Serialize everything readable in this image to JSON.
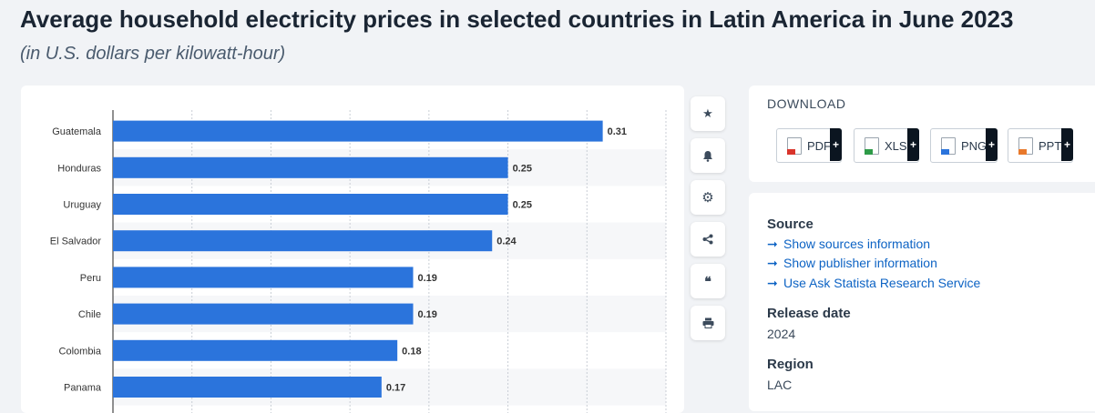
{
  "header": {
    "title": "Average household electricity prices in selected countries in Latin America in June 2023",
    "subtitle": "(in U.S. dollars per kilowatt-hour)"
  },
  "chart_data": {
    "type": "bar",
    "orientation": "horizontal",
    "categories": [
      "Guatemala",
      "Honduras",
      "Uruguay",
      "El Salvador",
      "Peru",
      "Chile",
      "Colombia",
      "Panama"
    ],
    "values": [
      0.31,
      0.25,
      0.25,
      0.24,
      0.19,
      0.19,
      0.18,
      0.17
    ],
    "value_labels": [
      "0.31",
      "0.25",
      "0.25",
      "0.24",
      "0.19",
      "0.19",
      "0.18",
      "0.17"
    ],
    "xlim": [
      0,
      0.35
    ],
    "bar_color": "#2b74dc",
    "grid": true,
    "title": "",
    "xlabel": "",
    "ylabel": ""
  },
  "toolbar": {
    "buttons": [
      {
        "name": "favorite",
        "icon": "star-icon",
        "glyph": "★"
      },
      {
        "name": "notification",
        "icon": "bell-icon",
        "glyph": "🔔"
      },
      {
        "name": "settings",
        "icon": "gear-icon",
        "glyph": "⚙"
      },
      {
        "name": "share",
        "icon": "share-icon",
        "glyph": "<"
      },
      {
        "name": "cite",
        "icon": "quote-icon",
        "glyph": "❝"
      },
      {
        "name": "print",
        "icon": "print-icon",
        "glyph": "⎙"
      }
    ]
  },
  "download": {
    "heading": "DOWNLOAD",
    "buttons": [
      {
        "label": "PDF",
        "icon": "pdf-icon",
        "color": "#d9342b"
      },
      {
        "label": "XLS",
        "icon": "xls-icon",
        "color": "#2e9b48"
      },
      {
        "label": "PNG",
        "icon": "png-icon",
        "color": "#2b74dc"
      },
      {
        "label": "PPT",
        "icon": "ppt-icon",
        "color": "#e8792b"
      }
    ],
    "plus": "+"
  },
  "info": {
    "source_heading": "Source",
    "links": [
      "Show sources information",
      "Show publisher information",
      "Use Ask Statista Research Service"
    ],
    "release_heading": "Release date",
    "release_value": "2024",
    "region_heading": "Region",
    "region_value": "LAC"
  },
  "colors": {
    "accent": "#2b74dc",
    "link": "#0d63c4"
  }
}
